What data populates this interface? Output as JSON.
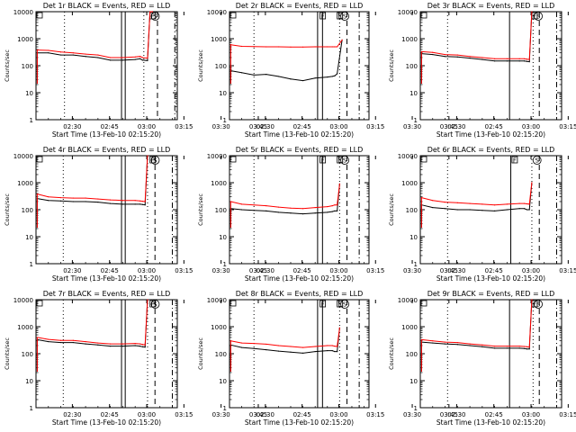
{
  "figure": {
    "xlabel": "Start Time (13-Feb-10 02:15:20)",
    "ylabel": "Counts/sec",
    "x_tick_labels": [
      "02:30",
      "02:45",
      "03:00",
      "03:15",
      "03:30",
      "03:45"
    ],
    "y_tick_labels": [
      "1",
      "10",
      "100",
      "1000",
      "10000"
    ],
    "colors": {
      "events": "#000000",
      "lld": "#ff0000",
      "axes": "#000000"
    }
  },
  "chart_data": [
    {
      "type": "line",
      "panel": "det1",
      "title": "Det 1r BLACK = Events, RED = LLD",
      "xlabel": "Start Time (13-Feb-10 02:15:20)",
      "ylabel": "Counts/sec",
      "x_unit": "minutes after 02:15:20",
      "xlim": [
        0,
        57
      ],
      "ylim": [
        1,
        10000
      ],
      "yscale": "log",
      "x": [
        0,
        0.5,
        5,
        10,
        15,
        20,
        25,
        30,
        35,
        40,
        42,
        43,
        45,
        46,
        47,
        52
      ],
      "series": [
        {
          "name": "Events",
          "color": "#000000",
          "values": [
            null,
            300,
            300,
            250,
            250,
            220,
            200,
            160,
            160,
            170,
            180,
            160,
            155,
            10000,
            10000,
            null
          ]
        },
        {
          "name": "LLD",
          "color": "#ff0000",
          "values": [
            null,
            380,
            370,
            320,
            300,
            270,
            250,
            200,
            200,
            210,
            220,
            200,
            190,
            10000,
            10000,
            null
          ]
        }
      ],
      "markers": [
        {
          "label": "F",
          "x": 44.5,
          "style": "solid"
        },
        {
          "label": "S",
          "x": 46,
          "style": "solid"
        },
        {
          "label": "",
          "x": 11.5,
          "style": "dotted"
        },
        {
          "label": "",
          "x": 43.5,
          "style": "dotted"
        },
        {
          "label": "",
          "x": 49,
          "style": "dashed"
        },
        {
          "label": "",
          "x": 56,
          "style": "dash-dot"
        }
      ],
      "solid_lines": [
        34.5,
        36
      ],
      "top_letters": [
        {
          "label": "F",
          "x": 46
        },
        {
          "label": "S",
          "x": 47
        }
      ]
    },
    {
      "type": "line",
      "panel": "det2",
      "title": "Det 2r BLACK = Events, RED = LLD",
      "xlabel": "Start Time (13-Feb-10 02:15:20)",
      "ylabel": "Counts/sec",
      "x_unit": "minutes after 02:15:20",
      "xlim": [
        0,
        57
      ],
      "ylim": [
        1,
        10000
      ],
      "yscale": "log",
      "x": [
        0,
        0.5,
        5,
        10,
        15,
        20,
        25,
        30,
        35,
        40,
        42,
        43,
        44,
        46
      ],
      "series": [
        {
          "name": "Events",
          "color": "#000000",
          "values": [
            null,
            65,
            55,
            45,
            48,
            40,
            32,
            28,
            35,
            38,
            40,
            42,
            50,
            900
          ]
        },
        {
          "name": "LLD",
          "color": "#ff0000",
          "values": [
            null,
            600,
            520,
            510,
            500,
            500,
            490,
            490,
            500,
            500,
            500,
            500,
            500,
            900
          ]
        }
      ],
      "solid_lines": [
        36,
        38
      ],
      "dotted_lines": [
        10,
        45
      ],
      "dashed_lines": [
        48
      ],
      "dashdot_lines": [
        53
      ],
      "top_letters": [
        {
          "label": "F",
          "x": 37
        },
        {
          "label": "E",
          "x": 44
        },
        {
          "label": "S",
          "x": 46
        }
      ]
    },
    {
      "type": "line",
      "panel": "det3",
      "title": "Det 3r BLACK = Events, RED = LLD",
      "xlabel": "Start Time (13-Feb-10 02:15:20)",
      "ylabel": "Counts/sec",
      "x_unit": "minutes after 02:15:20",
      "xlim": [
        0,
        57
      ],
      "ylim": [
        1,
        10000
      ],
      "yscale": "log",
      "x": [
        0,
        0.5,
        5,
        10,
        15,
        20,
        25,
        30,
        35,
        40,
        42,
        43,
        44,
        45
      ],
      "series": [
        {
          "name": "Events",
          "color": "#000000",
          "values": [
            null,
            280,
            260,
            220,
            210,
            190,
            170,
            150,
            150,
            150,
            150,
            145,
            140,
            10000
          ]
        },
        {
          "name": "LLD",
          "color": "#ff0000",
          "values": [
            null,
            330,
            310,
            260,
            250,
            220,
            200,
            180,
            180,
            180,
            180,
            175,
            170,
            10000
          ]
        }
      ],
      "solid_lines": [
        36
      ],
      "dotted_lines": [
        11,
        45.5
      ],
      "dashed_lines": [
        48
      ],
      "dashdot_lines": [
        55
      ],
      "top_letters": [
        {
          "label": "F",
          "x": 45
        },
        {
          "label": "S",
          "x": 46.5
        }
      ]
    },
    {
      "type": "line",
      "panel": "det4",
      "title": "Det 4r BLACK = Events, RED = LLD",
      "xlabel": "Start Time (13-Feb-10 02:15:20)",
      "ylabel": "Counts/sec",
      "x_unit": "minutes after 02:15:20",
      "xlim": [
        0,
        57
      ],
      "ylim": [
        1,
        10000
      ],
      "yscale": "log",
      "x": [
        0,
        0.5,
        5,
        10,
        15,
        20,
        25,
        30,
        35,
        40,
        42,
        43,
        44,
        45
      ],
      "series": [
        {
          "name": "Events",
          "color": "#000000",
          "values": [
            null,
            260,
            220,
            210,
            200,
            200,
            190,
            170,
            160,
            160,
            160,
            155,
            150,
            10000
          ]
        },
        {
          "name": "LLD",
          "color": "#ff0000",
          "values": [
            null,
            380,
            300,
            280,
            270,
            270,
            250,
            230,
            220,
            220,
            210,
            205,
            200,
            10000
          ]
        }
      ],
      "solid_lines": [
        34.5,
        36
      ],
      "dotted_lines": [
        11,
        45
      ],
      "dashed_lines": [
        48
      ],
      "dashdot_lines": [
        55
      ],
      "top_letters": [
        {
          "label": "F",
          "x": 46
        },
        {
          "label": "S",
          "x": 47
        }
      ]
    },
    {
      "type": "line",
      "panel": "det5",
      "title": "Det 5r BLACK = Events, RED = LLD",
      "xlabel": "Start Time (13-Feb-10 02:15:20)",
      "ylabel": "Counts/sec",
      "x_unit": "minutes after 02:15:20",
      "xlim": [
        0,
        57
      ],
      "ylim": [
        1,
        10000
      ],
      "yscale": "log",
      "x": [
        0,
        0.5,
        5,
        10,
        15,
        20,
        25,
        30,
        35,
        40,
        42,
        43,
        44,
        45
      ],
      "series": [
        {
          "name": "Events",
          "color": "#000000",
          "values": [
            null,
            110,
            100,
            95,
            90,
            80,
            75,
            70,
            75,
            80,
            85,
            90,
            90,
            900
          ]
        },
        {
          "name": "LLD",
          "color": "#ff0000",
          "values": [
            null,
            200,
            160,
            150,
            140,
            125,
            115,
            110,
            120,
            130,
            140,
            150,
            150,
            900
          ]
        }
      ],
      "solid_lines": [
        36,
        38
      ],
      "dotted_lines": [
        10,
        45
      ],
      "dashed_lines": [
        48
      ],
      "dashdot_lines": [
        53
      ],
      "top_letters": [
        {
          "label": "F",
          "x": 37
        },
        {
          "label": "E",
          "x": 44
        },
        {
          "label": "S",
          "x": 46
        }
      ]
    },
    {
      "type": "line",
      "panel": "det6",
      "title": "Det 6r BLACK = Events, RED = LLD",
      "xlabel": "Start Time (13-Feb-10 02:15:20)",
      "ylabel": "Counts/sec",
      "x_unit": "minutes after 02:15:20",
      "xlim": [
        0,
        57
      ],
      "ylim": [
        1,
        10000
      ],
      "yscale": "log",
      "x": [
        0,
        0.5,
        5,
        10,
        15,
        20,
        25,
        30,
        35,
        40,
        42,
        43,
        44,
        45
      ],
      "series": [
        {
          "name": "Events",
          "color": "#000000",
          "values": [
            null,
            150,
            120,
            110,
            100,
            100,
            95,
            90,
            100,
            110,
            110,
            100,
            100,
            1000
          ]
        },
        {
          "name": "LLD",
          "color": "#ff0000",
          "values": [
            null,
            280,
            220,
            190,
            180,
            170,
            160,
            150,
            160,
            170,
            170,
            165,
            160,
            1000
          ]
        }
      ],
      "solid_lines": [
        36.5
      ],
      "dotted_lines": [
        11,
        45
      ],
      "dashed_lines": [
        48
      ],
      "dashdot_lines": [
        55
      ],
      "top_letters": [
        {
          "label": "F",
          "x": 37
        },
        {
          "label": "S",
          "x": 46
        }
      ]
    },
    {
      "type": "line",
      "panel": "det7",
      "title": "Det 7r BLACK = Events, RED = LLD",
      "xlabel": "Start Time (13-Feb-10 02:15:20)",
      "ylabel": "Counts/sec",
      "x_unit": "minutes after 02:15:20",
      "xlim": [
        0,
        57
      ],
      "ylim": [
        1,
        10000
      ],
      "yscale": "log",
      "x": [
        0,
        0.5,
        5,
        10,
        15,
        20,
        25,
        30,
        35,
        40,
        42,
        43,
        44,
        45
      ],
      "series": [
        {
          "name": "Events",
          "color": "#000000",
          "values": [
            null,
            330,
            280,
            260,
            260,
            230,
            210,
            190,
            190,
            200,
            190,
            180,
            175,
            10000
          ]
        },
        {
          "name": "LLD",
          "color": "#ff0000",
          "values": [
            null,
            400,
            340,
            310,
            310,
            280,
            250,
            230,
            230,
            240,
            230,
            220,
            210,
            10000
          ]
        }
      ],
      "solid_lines": [
        34.5,
        36
      ],
      "dotted_lines": [
        11,
        45
      ],
      "dashed_lines": [
        48
      ],
      "dashdot_lines": [
        55
      ],
      "top_letters": [
        {
          "label": "F",
          "x": 46
        },
        {
          "label": "S",
          "x": 47
        }
      ]
    },
    {
      "type": "line",
      "panel": "det8",
      "title": "Det 8r BLACK = Events, RED = LLD",
      "xlabel": "Start Time (13-Feb-10 02:15:20)",
      "ylabel": "Counts/sec",
      "x_unit": "minutes after 02:15:20",
      "xlim": [
        0,
        57
      ],
      "ylim": [
        1,
        10000
      ],
      "yscale": "log",
      "x": [
        0,
        0.5,
        5,
        10,
        15,
        20,
        25,
        30,
        35,
        40,
        42,
        43,
        44,
        45
      ],
      "series": [
        {
          "name": "Events",
          "color": "#000000",
          "values": [
            null,
            210,
            170,
            155,
            140,
            125,
            115,
            105,
            120,
            130,
            130,
            120,
            120,
            900
          ]
        },
        {
          "name": "LLD",
          "color": "#ff0000",
          "values": [
            null,
            300,
            250,
            240,
            225,
            200,
            185,
            170,
            185,
            200,
            200,
            190,
            185,
            900
          ]
        }
      ],
      "solid_lines": [
        36,
        38
      ],
      "dotted_lines": [
        10,
        45
      ],
      "dashed_lines": [
        48
      ],
      "dashdot_lines": [
        53
      ],
      "top_letters": [
        {
          "label": "F",
          "x": 37
        },
        {
          "label": "E",
          "x": 44
        },
        {
          "label": "S",
          "x": 46
        }
      ]
    },
    {
      "type": "line",
      "panel": "det9",
      "title": "Det 9r BLACK = Events, RED = LLD",
      "xlabel": "Start Time (13-Feb-10 02:15:20)",
      "ylabel": "Counts/sec",
      "x_unit": "minutes after 02:15:20",
      "xlim": [
        0,
        57
      ],
      "ylim": [
        1,
        10000
      ],
      "yscale": "log",
      "x": [
        0,
        0.5,
        5,
        10,
        15,
        20,
        25,
        30,
        35,
        40,
        42,
        43,
        44,
        45
      ],
      "series": [
        {
          "name": "Events",
          "color": "#000000",
          "values": [
            null,
            270,
            250,
            230,
            220,
            200,
            180,
            160,
            160,
            160,
            155,
            150,
            150,
            10000
          ]
        },
        {
          "name": "LLD",
          "color": "#ff0000",
          "values": [
            null,
            330,
            300,
            270,
            260,
            230,
            210,
            190,
            190,
            190,
            185,
            180,
            175,
            10000
          ]
        }
      ],
      "solid_lines": [
        36
      ],
      "dotted_lines": [
        11,
        45.5
      ],
      "dashed_lines": [
        48
      ],
      "dashdot_lines": [
        55
      ],
      "top_letters": [
        {
          "label": "F",
          "x": 45
        },
        {
          "label": "S",
          "x": 46.5
        }
      ]
    }
  ]
}
